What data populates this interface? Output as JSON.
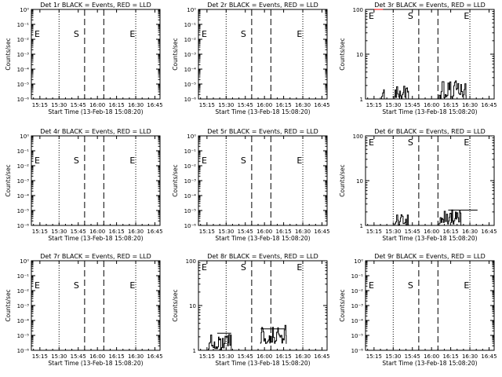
{
  "colors": {
    "events": "#000000",
    "lld": "#ff0000",
    "background": "#ffffff"
  },
  "chart_data": [
    {
      "type": "line",
      "title": "Det 1r BLACK = Events, RED = LLD",
      "scale": "log",
      "xlabel": "Start Time (13-Feb-18 15:08:20)",
      "ylabel": "Counts/sec",
      "xticks": [
        "15:15",
        "15:30",
        "15:45",
        "16:00",
        "16:15",
        "16:30",
        "16:45"
      ],
      "yticks": [
        "10⁻⁶",
        "10⁻⁵",
        "10⁻⁴",
        "10⁻³",
        "10⁻²",
        "10⁻¹",
        "10⁰"
      ],
      "ylim": [
        1e-06,
        1
      ],
      "markers": [
        {
          "label": "E",
          "time": "15:08"
        },
        {
          "label": "S",
          "time": "15:45"
        },
        {
          "label": "E",
          "time": "16:20"
        }
      ],
      "series": []
    },
    {
      "type": "line",
      "title": "Det 2r BLACK = Events, RED = LLD",
      "scale": "log",
      "xlabel": "Start Time (13-Feb-18 15:08:20)",
      "ylabel": "Counts/sec",
      "xticks": [
        "15:15",
        "15:30",
        "15:45",
        "16:00",
        "16:15",
        "16:30",
        "16:45"
      ],
      "yticks": [
        "10⁻⁶",
        "10⁻⁵",
        "10⁻⁴",
        "10⁻³",
        "10⁻²",
        "10⁻¹",
        "10⁰"
      ],
      "ylim": [
        1e-06,
        1
      ],
      "markers": [
        {
          "label": "E",
          "time": "15:08"
        },
        {
          "label": "S",
          "time": "15:45"
        },
        {
          "label": "E",
          "time": "16:20"
        }
      ],
      "series": []
    },
    {
      "type": "line",
      "title": "Det 3r BLACK = Events, RED = LLD",
      "scale": "log",
      "xlabel": "Start Time (13-Feb-18 15:08:20)",
      "ylabel": "Counts/sec",
      "xticks": [
        "15:15",
        "15:30",
        "15:45",
        "16:00",
        "16:15",
        "16:30",
        "16:45"
      ],
      "yticks": [
        "1",
        "10",
        "100"
      ],
      "ylim": [
        1,
        100
      ],
      "markers": [
        {
          "label": "E",
          "time": "15:08"
        },
        {
          "label": "S",
          "time": "15:45"
        },
        {
          "label": "E",
          "time": "16:20"
        }
      ],
      "series": [
        {
          "color": "events",
          "kind": "noisy",
          "segments": [
            {
              "x": [
                "15:21",
                "15:23"
              ],
              "lo": 1,
              "hi": 2
            },
            {
              "x": [
                "15:31",
                "15:42"
              ],
              "lo": 1,
              "hi": 2
            },
            {
              "x": [
                "16:06",
                "16:27"
              ],
              "lo": 1,
              "hi": 2.8
            }
          ]
        },
        {
          "color": "lld",
          "kind": "flat",
          "segments": [
            {
              "x": [
                "15:15",
                "15:22"
              ],
              "lo": 100,
              "hi": 100
            }
          ]
        }
      ]
    },
    {
      "type": "line",
      "title": "Det 4r BLACK = Events, RED = LLD",
      "scale": "log",
      "xlabel": "Start Time (13-Feb-18 15:08:20)",
      "ylabel": "Counts/sec",
      "xticks": [
        "15:15",
        "15:30",
        "15:45",
        "16:00",
        "16:15",
        "16:30",
        "16:45"
      ],
      "yticks": [
        "10⁻⁶",
        "10⁻⁵",
        "10⁻⁴",
        "10⁻³",
        "10⁻²",
        "10⁻¹",
        "10⁰"
      ],
      "ylim": [
        1e-06,
        1
      ],
      "markers": [
        {
          "label": "E",
          "time": "15:08"
        },
        {
          "label": "S",
          "time": "15:45"
        },
        {
          "label": "E",
          "time": "16:20"
        }
      ],
      "series": []
    },
    {
      "type": "line",
      "title": "Det 5r BLACK = Events, RED = LLD",
      "scale": "log",
      "xlabel": "Start Time (13-Feb-18 15:08:20)",
      "ylabel": "Counts/sec",
      "xticks": [
        "15:15",
        "15:30",
        "15:45",
        "16:00",
        "16:15",
        "16:30",
        "16:45"
      ],
      "yticks": [
        "10⁻⁶",
        "10⁻⁵",
        "10⁻⁴",
        "10⁻³",
        "10⁻²",
        "10⁻¹",
        "10⁰"
      ],
      "ylim": [
        1e-06,
        1
      ],
      "markers": [
        {
          "label": "E",
          "time": "15:08"
        },
        {
          "label": "S",
          "time": "15:45"
        },
        {
          "label": "E",
          "time": "16:20"
        }
      ],
      "series": []
    },
    {
      "type": "line",
      "title": "Det 6r BLACK = Events, RED = LLD",
      "scale": "log",
      "xlabel": "Start Time (13-Feb-18 15:08:20)",
      "ylabel": "Counts/sec",
      "xticks": [
        "15:15",
        "15:30",
        "15:45",
        "16:00",
        "16:15",
        "16:30",
        "16:45"
      ],
      "yticks": [
        "1",
        "10",
        "100"
      ],
      "ylim": [
        1,
        100
      ],
      "markers": [
        {
          "label": "E",
          "time": "15:08"
        },
        {
          "label": "S",
          "time": "15:45"
        },
        {
          "label": "E",
          "time": "16:20"
        }
      ],
      "series": [
        {
          "color": "events",
          "kind": "noisy",
          "segments": [
            {
              "x": [
                "15:31",
                "15:42"
              ],
              "lo": 1,
              "hi": 2
            },
            {
              "x": [
                "16:06",
                "16:23"
              ],
              "lo": 1,
              "hi": 2.6
            }
          ]
        },
        {
          "color": "events",
          "kind": "flat",
          "segments": [
            {
              "x": [
                "16:13",
                "16:36"
              ],
              "lo": 2.2,
              "hi": 2.2
            }
          ]
        }
      ]
    },
    {
      "type": "line",
      "title": "Det 7r BLACK = Events, RED = LLD",
      "scale": "log",
      "xlabel": "Start Time (13-Feb-18 15:08:20)",
      "ylabel": "Counts/sec",
      "xticks": [
        "15:15",
        "15:30",
        "15:45",
        "16:00",
        "16:15",
        "16:30",
        "16:45"
      ],
      "yticks": [
        "10⁻⁶",
        "10⁻⁵",
        "10⁻⁴",
        "10⁻³",
        "10⁻²",
        "10⁻¹",
        "10⁰"
      ],
      "ylim": [
        1e-06,
        1
      ],
      "markers": [
        {
          "label": "E",
          "time": "15:08"
        },
        {
          "label": "S",
          "time": "15:45"
        },
        {
          "label": "E",
          "time": "16:20"
        }
      ],
      "series": []
    },
    {
      "type": "line",
      "title": "Det 8r BLACK = Events, RED = LLD",
      "scale": "log",
      "xlabel": "Start Time (13-Feb-18 15:08:20)",
      "ylabel": "Counts/sec",
      "xticks": [
        "15:15",
        "15:30",
        "15:45",
        "16:00",
        "16:15",
        "16:30",
        "16:45"
      ],
      "yticks": [
        "1",
        "10",
        "100"
      ],
      "ylim": [
        1,
        100
      ],
      "markers": [
        {
          "label": "E",
          "time": "15:08"
        },
        {
          "label": "S",
          "time": "15:45"
        },
        {
          "label": "E",
          "time": "16:20"
        }
      ],
      "series": [
        {
          "color": "events",
          "kind": "noisy",
          "segments": [
            {
              "x": [
                "15:16",
                "15:34"
              ],
              "lo": 1,
              "hi": 2.6
            },
            {
              "x": [
                "15:57",
                "16:17"
              ],
              "lo": 1.4,
              "hi": 3.8
            }
          ]
        },
        {
          "color": "events",
          "kind": "flat",
          "segments": [
            {
              "x": [
                "15:23",
                "15:34"
              ],
              "lo": 2.4,
              "hi": 2.4
            },
            {
              "x": [
                "15:57",
                "16:16"
              ],
              "lo": 3.0,
              "hi": 3.0
            }
          ]
        }
      ]
    },
    {
      "type": "line",
      "title": "Det 9r BLACK = Events, RED = LLD",
      "scale": "log",
      "xlabel": "Start Time (13-Feb-18 15:08:20)",
      "ylabel": "Counts/sec",
      "xticks": [
        "15:15",
        "15:30",
        "15:45",
        "16:00",
        "16:15",
        "16:30",
        "16:45"
      ],
      "yticks": [
        "10⁻⁶",
        "10⁻⁵",
        "10⁻⁴",
        "10⁻³",
        "10⁻²",
        "10⁻¹",
        "10⁰"
      ],
      "ylim": [
        1e-06,
        1
      ],
      "markers": [
        {
          "label": "E",
          "time": "15:08"
        },
        {
          "label": "S",
          "time": "15:45"
        },
        {
          "label": "E",
          "time": "16:20"
        }
      ],
      "series": []
    }
  ]
}
